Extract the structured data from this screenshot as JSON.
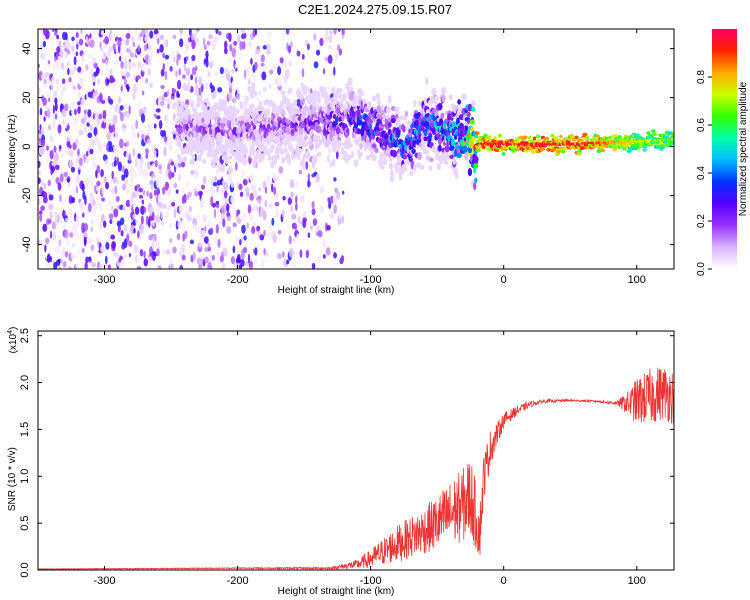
{
  "title": "C2E1.2024.275.09.15.R07",
  "chart_data": [
    {
      "type": "heatmap",
      "xlabel": "Height of straight line (km)",
      "ylabel": "Frequency (Hz)",
      "xlim": [
        -350,
        128
      ],
      "ylim": [
        -50,
        48
      ],
      "x_ticks": [
        -300,
        -200,
        -100,
        0,
        100
      ],
      "y_ticks": [
        -40,
        -20,
        0,
        20,
        40
      ],
      "colorbar": {
        "label": "Normalized spectral amplitude",
        "range": [
          0,
          1
        ],
        "ticks": [
          0.0,
          0.2,
          0.4,
          0.6,
          0.8
        ],
        "tick_labels": [
          "0.0",
          "0.2",
          "0.4",
          "0.6",
          "0.8"
        ],
        "colormap": [
          "#ffffff",
          "#d9b3ff",
          "#9933ff",
          "#5500ff",
          "#0033ff",
          "#00bbff",
          "#00ffaa",
          "#33ff00",
          "#ccff00",
          "#ffaa00",
          "#ff2200",
          "#ff0066"
        ]
      },
      "ridge": [
        {
          "x": -240,
          "f": 8
        },
        {
          "x": -200,
          "f": 6
        },
        {
          "x": -160,
          "f": 9
        },
        {
          "x": -130,
          "f": 10
        },
        {
          "x": -110,
          "f": 12
        },
        {
          "x": -90,
          "f": 5
        },
        {
          "x": -75,
          "f": 0
        },
        {
          "x": -60,
          "f": 9
        },
        {
          "x": -45,
          "f": 8
        },
        {
          "x": -30,
          "f": 3
        },
        {
          "x": -20,
          "f": 1
        },
        {
          "x": 0,
          "f": 1
        },
        {
          "x": 50,
          "f": 1
        },
        {
          "x": 100,
          "f": 2
        },
        {
          "x": 128,
          "f": 3
        }
      ],
      "ridge_peak_amplitude": [
        {
          "x": -240,
          "a": 0.2
        },
        {
          "x": -150,
          "a": 0.25
        },
        {
          "x": -110,
          "a": 0.4
        },
        {
          "x": -80,
          "a": 0.45
        },
        {
          "x": -40,
          "a": 0.5
        },
        {
          "x": -20,
          "a": 0.95
        },
        {
          "x": 60,
          "a": 0.95
        },
        {
          "x": 100,
          "a": 0.75
        },
        {
          "x": 128,
          "a": 0.7
        }
      ]
    },
    {
      "type": "line",
      "xlabel": "Height of straight line (km)",
      "ylabel": "SNR (10 * v/v)",
      "y_multiplier": "(x10",
      "y_multiplier_exp": "4",
      "y_multiplier_close": ")",
      "xlim": [
        -350,
        128
      ],
      "ylim": [
        0,
        2.55
      ],
      "x_ticks": [
        -300,
        -200,
        -100,
        0,
        100
      ],
      "y_ticks": [
        0.0,
        0.5,
        1.0,
        1.5,
        2.0,
        2.5
      ],
      "y_tick_labels": [
        "0.0",
        "0.5",
        "1.0",
        "1.5",
        "2.0",
        "2.5"
      ],
      "color": "#ee3333",
      "series": [
        {
          "x": [
            -350,
            -200,
            -130,
            -110,
            -100,
            -90,
            -80,
            -70,
            -60,
            -50,
            -40,
            -30,
            -25,
            -18,
            -15,
            -10,
            -5,
            0,
            10,
            20,
            30,
            50,
            70,
            85,
            95,
            100,
            110,
            120,
            128
          ],
          "y": [
            0.01,
            0.02,
            0.02,
            0.06,
            0.12,
            0.2,
            0.28,
            0.35,
            0.42,
            0.5,
            0.6,
            0.7,
            0.8,
            0.4,
            1.0,
            1.3,
            1.45,
            1.6,
            1.7,
            1.77,
            1.8,
            1.81,
            1.8,
            1.78,
            1.78,
            1.8,
            1.85,
            1.9,
            1.85
          ],
          "noise": [
            0.003,
            0.005,
            0.01,
            0.05,
            0.1,
            0.15,
            0.2,
            0.22,
            0.25,
            0.3,
            0.35,
            0.4,
            0.45,
            0.3,
            0.25,
            0.2,
            0.12,
            0.08,
            0.05,
            0.03,
            0.02,
            0.01,
            0.01,
            0.02,
            0.15,
            0.25,
            0.3,
            0.3,
            0.3
          ]
        }
      ]
    }
  ]
}
